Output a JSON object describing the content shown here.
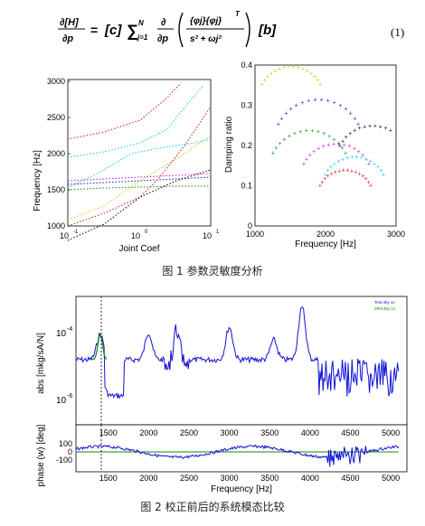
{
  "equation": {
    "lhs_num": "∂[H]",
    "lhs_den": "∂p",
    "eq": "=",
    "c": "[c]",
    "sum_top": "N",
    "sum_bottom": "j=1",
    "sum": "∑",
    "d_num": "∂",
    "d_den": "∂p",
    "frac_num": "{φj}{φj}",
    "frac_sup": "T",
    "frac_den": "s² + ωj²",
    "b": "[b]",
    "number": "(1)"
  },
  "figure1": {
    "caption": "图 1   参数灵敏度分析",
    "left": {
      "ylabel": "Frequency [Hz]",
      "xlabel": "Joint Coef",
      "yticks": [
        "1000",
        "1500",
        "2000",
        "2500",
        "3000"
      ],
      "xticks": [
        "10",
        "10",
        "10"
      ],
      "xtick_exp": [
        "-1",
        "0",
        "1"
      ]
    },
    "right": {
      "ylabel": "Damping ratio",
      "xlabel": "Frequency [Hz]",
      "yticks": [
        "0",
        "0.1",
        "0.2",
        "0.3",
        "0.4"
      ],
      "xticks": [
        "1000",
        "2000",
        "3000"
      ]
    }
  },
  "figure2": {
    "caption": "图 2   校正前后的系统模态比较",
    "top": {
      "ylabel": "abs [mkg/sA/N]",
      "ytick_base": [
        "10",
        "10"
      ],
      "ytick_exp": [
        "-4",
        "-6"
      ],
      "legend": [
        "Test:4by 1z",
        "MFit:4by 1z"
      ]
    },
    "bottom": {
      "ylabel": "phase (w) [deg]",
      "xlabel": "Frequency [Hz]",
      "yticks": [
        "100",
        "0",
        "-100"
      ],
      "xticks": [
        "1500",
        "2000",
        "2500",
        "3000",
        "3500",
        "4000",
        "4500",
        "5000"
      ],
      "top_xticks": [
        "1500",
        "2000",
        "2500",
        "3000",
        "3500",
        "4000",
        "4500",
        "5000"
      ]
    }
  },
  "colors": {
    "blue": "#1010d8",
    "green": "#0a8a0a",
    "red": "#e01010",
    "magenta": "#cc10cc",
    "cyan": "#10c8d8",
    "yellow": "#c8c810",
    "black": "#000000"
  }
}
